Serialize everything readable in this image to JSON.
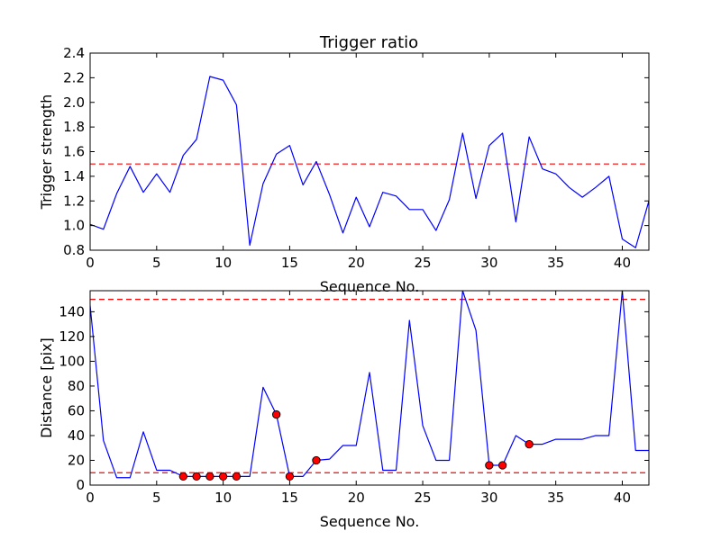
{
  "chart_data": [
    {
      "type": "line",
      "title": "Trigger ratio",
      "xlabel": "Sequence No.",
      "ylabel": "Trigger strength",
      "xlim": [
        0,
        42
      ],
      "ylim": [
        0.8,
        2.4
      ],
      "xticks": [
        0,
        5,
        10,
        15,
        20,
        25,
        30,
        35,
        40
      ],
      "yticks": [
        0.8,
        1.0,
        1.2,
        1.4,
        1.6,
        1.8,
        2.0,
        2.2,
        2.4
      ],
      "ytick_decimals": 1,
      "grid": false,
      "line_color": "#0000ff",
      "threshold_color": "#ff0000",
      "thresholds": [
        1.5
      ],
      "x": [
        0,
        1,
        2,
        3,
        4,
        5,
        6,
        7,
        8,
        9,
        10,
        11,
        12,
        13,
        14,
        15,
        16,
        17,
        18,
        19,
        20,
        21,
        22,
        23,
        24,
        25,
        26,
        27,
        28,
        29,
        30,
        31,
        32,
        33,
        34,
        35,
        36,
        37,
        38,
        39,
        40,
        41,
        42
      ],
      "values": [
        1.01,
        0.97,
        1.26,
        1.48,
        1.27,
        1.42,
        1.27,
        1.57,
        1.7,
        2.21,
        2.18,
        1.98,
        0.84,
        1.34,
        1.58,
        1.65,
        1.33,
        1.52,
        1.25,
        0.94,
        1.23,
        0.99,
        1.27,
        1.24,
        1.13,
        1.13,
        0.96,
        1.21,
        1.75,
        1.22,
        1.65,
        1.75,
        1.03,
        1.72,
        1.46,
        1.42,
        1.31,
        1.23,
        1.31,
        1.4,
        0.89,
        0.82,
        1.2
      ],
      "markers": {
        "x": [],
        "y": []
      }
    },
    {
      "type": "line",
      "title": "",
      "xlabel": "Sequence No.",
      "ylabel": "Distance [pix]",
      "xlim": [
        0,
        42
      ],
      "ylim": [
        0,
        157
      ],
      "xticks": [
        0,
        5,
        10,
        15,
        20,
        25,
        30,
        35,
        40
      ],
      "yticks": [
        0,
        20,
        40,
        60,
        80,
        100,
        120,
        140
      ],
      "ytick_decimals": 0,
      "grid": false,
      "line_color": "#0000ff",
      "threshold_color": "#ff0000",
      "marker_color": "#ff0000",
      "thresholds": [
        10,
        150
      ],
      "x": [
        0,
        1,
        2,
        3,
        4,
        5,
        6,
        7,
        8,
        9,
        10,
        11,
        12,
        13,
        14,
        15,
        16,
        17,
        18,
        19,
        20,
        21,
        22,
        23,
        24,
        25,
        26,
        27,
        28,
        29,
        30,
        31,
        32,
        33,
        34,
        35,
        36,
        37,
        38,
        39,
        40,
        41,
        42
      ],
      "values": [
        145,
        36,
        6,
        6,
        43,
        12,
        12,
        7,
        7,
        7,
        7,
        7,
        7,
        79,
        57,
        7,
        7,
        20,
        21,
        32,
        32,
        91,
        12,
        12,
        133,
        48,
        20,
        20,
        157,
        125,
        16,
        16,
        40,
        33,
        33,
        37,
        37,
        37,
        40,
        40,
        157,
        28,
        28
      ],
      "markers": {
        "x": [
          7,
          8,
          9,
          10,
          11,
          14,
          15,
          17,
          30,
          31,
          33
        ],
        "y": [
          7,
          7,
          7,
          7,
          7,
          57,
          7,
          20,
          16,
          16,
          33
        ]
      }
    }
  ]
}
